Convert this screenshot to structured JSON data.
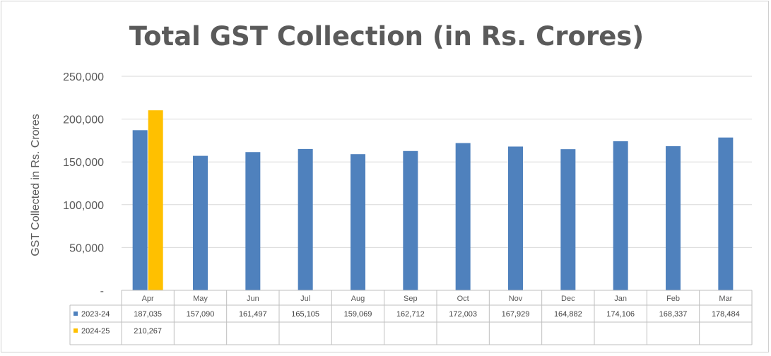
{
  "chart_data": {
    "type": "bar",
    "title": "Total GST Collection (in Rs. Crores)",
    "ylabel": "GST Collected in Rs. Crores",
    "xlabel": "",
    "ylim": [
      0,
      250000
    ],
    "yticks": [
      "-",
      "50,000",
      "100,000",
      "150,000",
      "200,000",
      "250,000"
    ],
    "grid": true,
    "legend": "data table below chart",
    "categories": [
      "Apr",
      "May",
      "Jun",
      "Jul",
      "Aug",
      "Sep",
      "Oct",
      "Nov",
      "Dec",
      "Jan",
      "Feb",
      "Mar"
    ],
    "series": [
      {
        "name": "2023-24",
        "color": "#4f81bd",
        "values": [
          187035,
          157090,
          161497,
          165105,
          159069,
          162712,
          172003,
          167929,
          164882,
          174106,
          168337,
          178484
        ],
        "labels": [
          "187,035",
          "157,090",
          "161,497",
          "165,105",
          "159,069",
          "162,712",
          "172,003",
          "167,929",
          "164,882",
          "174,106",
          "168,337",
          "178,484"
        ]
      },
      {
        "name": "2024-25",
        "color": "#ffc000",
        "values": [
          210267,
          null,
          null,
          null,
          null,
          null,
          null,
          null,
          null,
          null,
          null,
          null
        ],
        "labels": [
          "210,267",
          "",
          "",
          "",
          "",
          "",
          "",
          "",
          "",
          "",
          "",
          ""
        ]
      }
    ]
  }
}
